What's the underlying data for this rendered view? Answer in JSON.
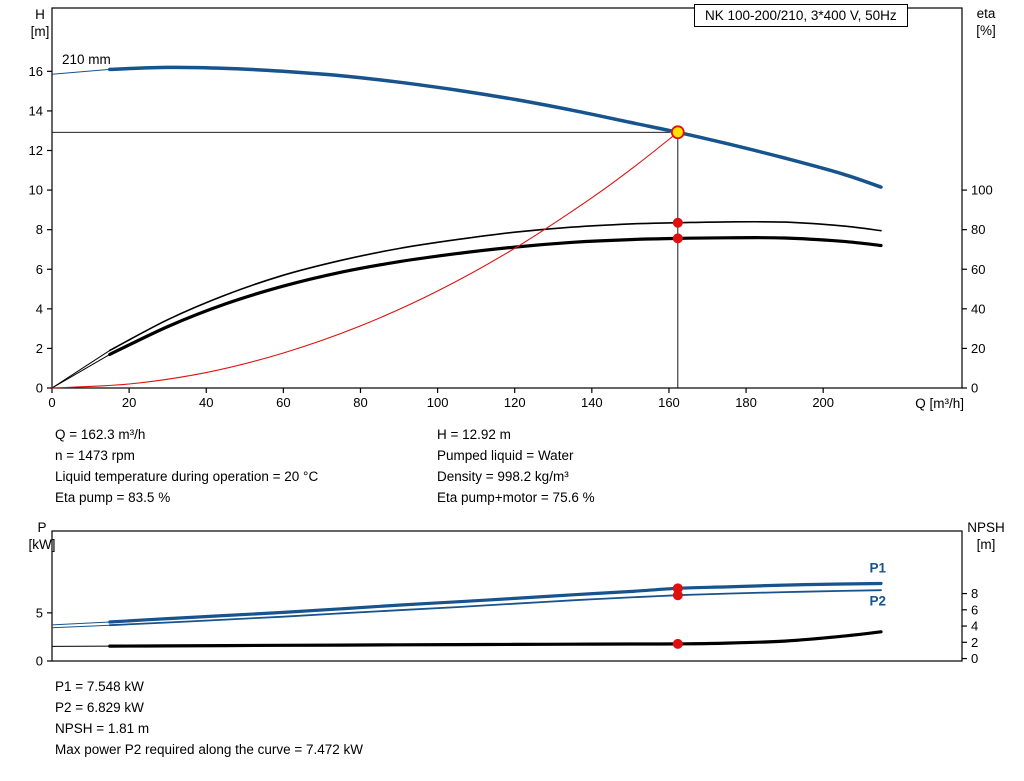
{
  "colors": {
    "curve_blue": "#17538c",
    "accent_red": "#e01010",
    "duty_yellow": "#ffe000",
    "axis_black": "#000000",
    "background": "#ffffff"
  },
  "info_top": {
    "left": [
      "Q = 162.3 m³/h",
      "n = 1473 rpm",
      "Liquid temperature during operation = 20 °C",
      "Eta pump = 83.5 %"
    ],
    "right": [
      "H = 12.92 m",
      "Pumped liquid = Water",
      "Density = 998.2 kg/m³",
      "Eta pump+motor = 75.6 %"
    ]
  },
  "info_bottom": [
    "P1 = 7.548 kW",
    "P2 = 6.829 kW",
    "NPSH = 1.81 m",
    "Max power P2 required along the curve = 7.472 kW"
  ],
  "chart_data": [
    {
      "type": "line",
      "title": "NK 100-200/210, 3*400 V, 50Hz",
      "xlabel": "Q [m³/h]",
      "xlim": [
        0,
        236
      ],
      "xticks": [
        0,
        20,
        40,
        60,
        80,
        100,
        120,
        140,
        160,
        180,
        200
      ],
      "grid": false,
      "left_axis": {
        "label": "H",
        "unit": "[m]",
        "range": [
          0,
          19.2
        ],
        "ticks": [
          0,
          2,
          4,
          6,
          8,
          10,
          12,
          14,
          16
        ]
      },
      "right_axis": {
        "label": "eta",
        "unit": "[%]",
        "range": [
          0,
          192
        ],
        "ticks": [
          0,
          20,
          40,
          60,
          80,
          100
        ]
      },
      "annotations": [
        {
          "text": "210 mm"
        }
      ],
      "guides": [
        {
          "q": 162.3,
          "v": 12.92,
          "axis": "left"
        }
      ],
      "series": [
        {
          "id": "h-curve",
          "name": "H 210 mm",
          "axis": "left",
          "color": "#17538c",
          "width": 3.5,
          "thin_until": 15,
          "points": [
            [
              0,
              15.85
            ],
            [
              15,
              16.1
            ],
            [
              30,
              16.2
            ],
            [
              45,
              16.15
            ],
            [
              60,
              16.0
            ],
            [
              75,
              15.78
            ],
            [
              90,
              15.45
            ],
            [
              105,
              15.05
            ],
            [
              120,
              14.58
            ],
            [
              135,
              14.03
            ],
            [
              150,
              13.42
            ],
            [
              162.3,
              12.92
            ],
            [
              175,
              12.35
            ],
            [
              190,
              11.62
            ],
            [
              205,
              10.82
            ],
            [
              215,
              10.15
            ]
          ]
        },
        {
          "id": "eta-pump-curve",
          "name": "Eta pump",
          "axis": "right",
          "color": "#000000",
          "width": 1.6,
          "thin_until": 15,
          "points": [
            [
              0,
              0
            ],
            [
              15,
              19
            ],
            [
              30,
              34.5
            ],
            [
              45,
              47
            ],
            [
              60,
              57
            ],
            [
              75,
              64.5
            ],
            [
              90,
              70.5
            ],
            [
              105,
              75
            ],
            [
              120,
              78.7
            ],
            [
              135,
              81.3
            ],
            [
              150,
              82.9
            ],
            [
              162.3,
              83.5
            ],
            [
              175,
              83.9
            ],
            [
              190,
              83.8
            ],
            [
              205,
              81.9
            ],
            [
              215,
              79.5
            ]
          ]
        },
        {
          "id": "eta-pump-motor-curve",
          "name": "Eta pump+motor",
          "axis": "right",
          "color": "#000000",
          "width": 3.2,
          "thin_until": 15,
          "points": [
            [
              0,
              0
            ],
            [
              15,
              17
            ],
            [
              30,
              31
            ],
            [
              45,
              42.5
            ],
            [
              60,
              51.5
            ],
            [
              75,
              58.5
            ],
            [
              90,
              63.8
            ],
            [
              105,
              67.9
            ],
            [
              120,
              71.2
            ],
            [
              135,
              73.6
            ],
            [
              150,
              75.0
            ],
            [
              162.3,
              75.6
            ],
            [
              175,
              75.9
            ],
            [
              190,
              75.8
            ],
            [
              205,
              74.1
            ],
            [
              215,
              72.0
            ]
          ]
        },
        {
          "id": "system-curve",
          "name": "System curve",
          "axis": "left",
          "color": "#e01010",
          "width": 1.1,
          "points": [
            [
              0,
              0
            ],
            [
              20,
              0.2
            ],
            [
              40,
              0.78
            ],
            [
              60,
              1.77
            ],
            [
              80,
              3.14
            ],
            [
              100,
              4.9
            ],
            [
              120,
              7.06
            ],
            [
              140,
              9.61
            ],
            [
              152,
              11.33
            ],
            [
              162.3,
              12.92
            ]
          ]
        }
      ],
      "markers": [
        {
          "name": "duty-point-marker",
          "q": 162.3,
          "v": 12.92,
          "axis": "left",
          "type": "duty-ring"
        },
        {
          "name": "eta-pump-marker",
          "q": 162.3,
          "v": 83.5,
          "axis": "right",
          "type": "dot"
        },
        {
          "name": "eta-pump-motor-marker",
          "q": 162.3,
          "v": 75.6,
          "axis": "right",
          "type": "dot"
        }
      ]
    },
    {
      "type": "line",
      "title": "",
      "xlabel": "",
      "xlim": [
        0,
        236
      ],
      "xticks": [],
      "xtick_labels": false,
      "grid": false,
      "left_axis": {
        "label": "P",
        "unit": "[kW]",
        "range": [
          0,
          13.5
        ],
        "ticks": [
          0,
          5
        ]
      },
      "right_axis": {
        "label": "NPSH",
        "unit": "[m]",
        "range": [
          -0.3,
          15.7
        ],
        "ticks": [
          0,
          2,
          4,
          6,
          8
        ]
      },
      "series": [
        {
          "id": "p1-curve",
          "name": "P1",
          "axis": "left",
          "color": "#17538c",
          "width": 3.2,
          "thin_until": 15,
          "label": {
            "q": 212,
            "v": 9.2
          },
          "points": [
            [
              0,
              3.75
            ],
            [
              15,
              4.05
            ],
            [
              30,
              4.4
            ],
            [
              45,
              4.72
            ],
            [
              60,
              5.05
            ],
            [
              75,
              5.42
            ],
            [
              90,
              5.8
            ],
            [
              105,
              6.15
            ],
            [
              120,
              6.5
            ],
            [
              135,
              6.87
            ],
            [
              150,
              7.22
            ],
            [
              162.3,
              7.548
            ],
            [
              175,
              7.7
            ],
            [
              190,
              7.88
            ],
            [
              205,
              8.0
            ],
            [
              215,
              8.05
            ]
          ]
        },
        {
          "id": "p2-curve",
          "name": "P2",
          "axis": "left",
          "color": "#17538c",
          "width": 1.8,
          "thin_until": 15,
          "label": {
            "q": 212,
            "v": 5.75
          },
          "points": [
            [
              0,
              3.45
            ],
            [
              15,
              3.72
            ],
            [
              30,
              4.0
            ],
            [
              45,
              4.3
            ],
            [
              60,
              4.6
            ],
            [
              75,
              4.95
            ],
            [
              90,
              5.28
            ],
            [
              105,
              5.6
            ],
            [
              120,
              5.95
            ],
            [
              135,
              6.3
            ],
            [
              150,
              6.6
            ],
            [
              162.3,
              6.829
            ],
            [
              175,
              7.0
            ],
            [
              190,
              7.15
            ],
            [
              205,
              7.28
            ],
            [
              215,
              7.35
            ]
          ]
        },
        {
          "id": "npsh-curve",
          "name": "NPSH",
          "axis": "right",
          "color": "#000000",
          "width": 3.2,
          "thin_until": 15,
          "points": [
            [
              0,
              1.5
            ],
            [
              15,
              1.53
            ],
            [
              30,
              1.56
            ],
            [
              45,
              1.6
            ],
            [
              60,
              1.63
            ],
            [
              75,
              1.66
            ],
            [
              90,
              1.69
            ],
            [
              105,
              1.72
            ],
            [
              120,
              1.74
            ],
            [
              135,
              1.77
            ],
            [
              150,
              1.79
            ],
            [
              162.3,
              1.81
            ],
            [
              175,
              1.9
            ],
            [
              190,
              2.15
            ],
            [
              205,
              2.75
            ],
            [
              215,
              3.3
            ]
          ]
        }
      ],
      "markers": [
        {
          "name": "p1-marker",
          "q": 162.3,
          "v": 7.548,
          "axis": "left",
          "type": "dot"
        },
        {
          "name": "p2-marker",
          "q": 162.3,
          "v": 6.829,
          "axis": "left",
          "type": "dot"
        },
        {
          "name": "npsh-marker",
          "q": 162.3,
          "v": 1.81,
          "axis": "right",
          "type": "dot"
        }
      ]
    }
  ]
}
